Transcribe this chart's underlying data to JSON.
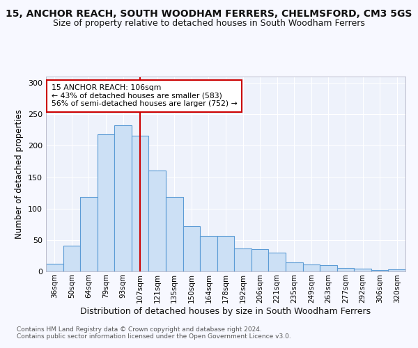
{
  "title1": "15, ANCHOR REACH, SOUTH WOODHAM FERRERS, CHELMSFORD, CM3 5GS",
  "title2": "Size of property relative to detached houses in South Woodham Ferrers",
  "xlabel": "Distribution of detached houses by size in South Woodham Ferrers",
  "ylabel": "Number of detached properties",
  "categories": [
    "36sqm",
    "50sqm",
    "64sqm",
    "79sqm",
    "93sqm",
    "107sqm",
    "121sqm",
    "135sqm",
    "150sqm",
    "164sqm",
    "178sqm",
    "192sqm",
    "206sqm",
    "221sqm",
    "235sqm",
    "249sqm",
    "263sqm",
    "277sqm",
    "292sqm",
    "306sqm",
    "320sqm"
  ],
  "values": [
    12,
    41,
    119,
    218,
    232,
    216,
    160,
    119,
    72,
    57,
    57,
    36,
    35,
    30,
    14,
    11,
    10,
    5,
    4,
    2,
    3
  ],
  "bar_color": "#cce0f5",
  "bar_edge_color": "#5b9bd5",
  "vline_idx": 5,
  "vline_color": "#cc0000",
  "annotation_line1": "15 ANCHOR REACH: 106sqm",
  "annotation_line2": "← 43% of detached houses are smaller (583)",
  "annotation_line3": "56% of semi-detached houses are larger (752) →",
  "annotation_box_color": "#ffffff",
  "annotation_box_edge": "#cc0000",
  "footnote1": "Contains HM Land Registry data © Crown copyright and database right 2024.",
  "footnote2": "Contains public sector information licensed under the Open Government Licence v3.0.",
  "ylim": [
    0,
    310
  ],
  "yticks": [
    0,
    50,
    100,
    150,
    200,
    250,
    300
  ],
  "background_color": "#eef2fb",
  "grid_color": "#ffffff",
  "fig_bg": "#f7f8ff"
}
